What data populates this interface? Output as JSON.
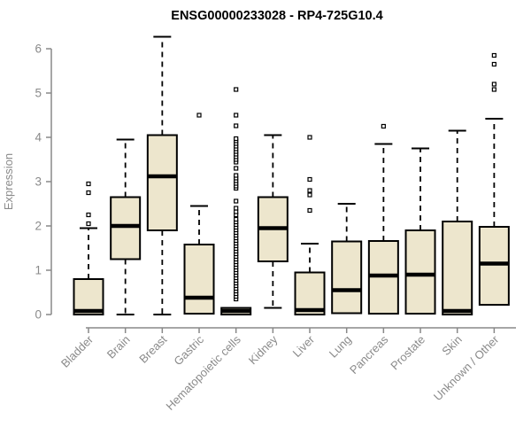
{
  "chart_data": {
    "type": "boxplot",
    "title": "ENSG00000233028 - RP4-725G10.4",
    "ylabel": "Expression",
    "xlabel": "",
    "ylim": [
      0,
      6.4
    ],
    "yticks": [
      0,
      1,
      2,
      3,
      4,
      5,
      6
    ],
    "grid": false,
    "legend": null,
    "categories": [
      "Bladder",
      "Brain",
      "Breast",
      "Gastric",
      "Hematopoietic cells",
      "Kidney",
      "Liver",
      "Lung",
      "Pancreas",
      "Prostate",
      "Skin",
      "Unknown / Other"
    ],
    "series": [
      {
        "name": "Bladder",
        "whisker_low": 0,
        "q1": 0,
        "median": 0.08,
        "q3": 0.8,
        "whisker_high": 1.95,
        "outliers": [
          2.05,
          2.25,
          2.75,
          2.95
        ]
      },
      {
        "name": "Brain",
        "whisker_low": 0,
        "q1": 1.25,
        "median": 2.0,
        "q3": 2.65,
        "whisker_high": 3.95,
        "outliers": []
      },
      {
        "name": "Breast",
        "whisker_low": 0,
        "q1": 1.9,
        "median": 3.12,
        "q3": 4.05,
        "whisker_high": 6.27,
        "outliers": []
      },
      {
        "name": "Gastric",
        "whisker_low": 0.02,
        "q1": 0.02,
        "median": 0.38,
        "q3": 1.58,
        "whisker_high": 2.45,
        "outliers": [
          4.5
        ]
      },
      {
        "name": "Hematopoietic cells",
        "whisker_low": 0,
        "q1": 0,
        "median": 0.08,
        "q3": 0.15,
        "whisker_high": 0.15,
        "outliers": [
          0.35,
          0.41,
          0.47,
          0.53,
          0.59,
          0.65,
          0.71,
          0.77,
          0.83,
          0.89,
          0.95,
          1.01,
          1.07,
          1.13,
          1.19,
          1.25,
          1.31,
          1.37,
          1.43,
          1.49,
          1.55,
          1.61,
          1.67,
          1.73,
          1.79,
          1.85,
          1.91,
          1.97,
          2.03,
          2.09,
          2.15,
          2.25,
          2.32,
          2.4,
          2.56,
          2.85,
          2.9,
          2.96,
          3.02,
          3.08,
          3.14,
          3.3,
          3.44,
          3.5,
          3.56,
          3.62,
          3.68,
          3.74,
          3.8,
          3.86,
          3.92,
          3.97,
          4.26,
          4.5,
          5.08
        ]
      },
      {
        "name": "Kidney",
        "whisker_low": 0.15,
        "q1": 1.2,
        "median": 1.95,
        "q3": 2.65,
        "whisker_high": 4.05,
        "outliers": []
      },
      {
        "name": "Liver",
        "whisker_low": 0,
        "q1": 0,
        "median": 0.1,
        "q3": 0.95,
        "whisker_high": 1.6,
        "outliers": [
          2.35,
          2.7,
          2.8,
          3.05,
          4.0
        ]
      },
      {
        "name": "Lung",
        "whisker_low": 0.03,
        "q1": 0.03,
        "median": 0.55,
        "q3": 1.65,
        "whisker_high": 2.5,
        "outliers": []
      },
      {
        "name": "Pancreas",
        "whisker_low": 0.02,
        "q1": 0.02,
        "median": 0.88,
        "q3": 1.66,
        "whisker_high": 3.85,
        "outliers": [
          4.25
        ]
      },
      {
        "name": "Prostate",
        "whisker_low": 0.02,
        "q1": 0.02,
        "median": 0.9,
        "q3": 1.9,
        "whisker_high": 3.75,
        "outliers": []
      },
      {
        "name": "Skin",
        "whisker_low": 0,
        "q1": 0,
        "median": 0.08,
        "q3": 2.1,
        "whisker_high": 4.15,
        "outliers": []
      },
      {
        "name": "Unknown / Other",
        "whisker_low": 0.22,
        "q1": 0.22,
        "median": 1.15,
        "q3": 1.98,
        "whisker_high": 4.42,
        "outliers": [
          5.08,
          5.2,
          5.65,
          5.85
        ]
      }
    ],
    "colors": {
      "box_fill": "#ede6cd",
      "box_border": "#000000",
      "median": "#000000",
      "whisker": "#000000",
      "axis": "#888888",
      "tick_label": "#8a8a8a",
      "title": "#000000",
      "background": "#ffffff"
    }
  }
}
